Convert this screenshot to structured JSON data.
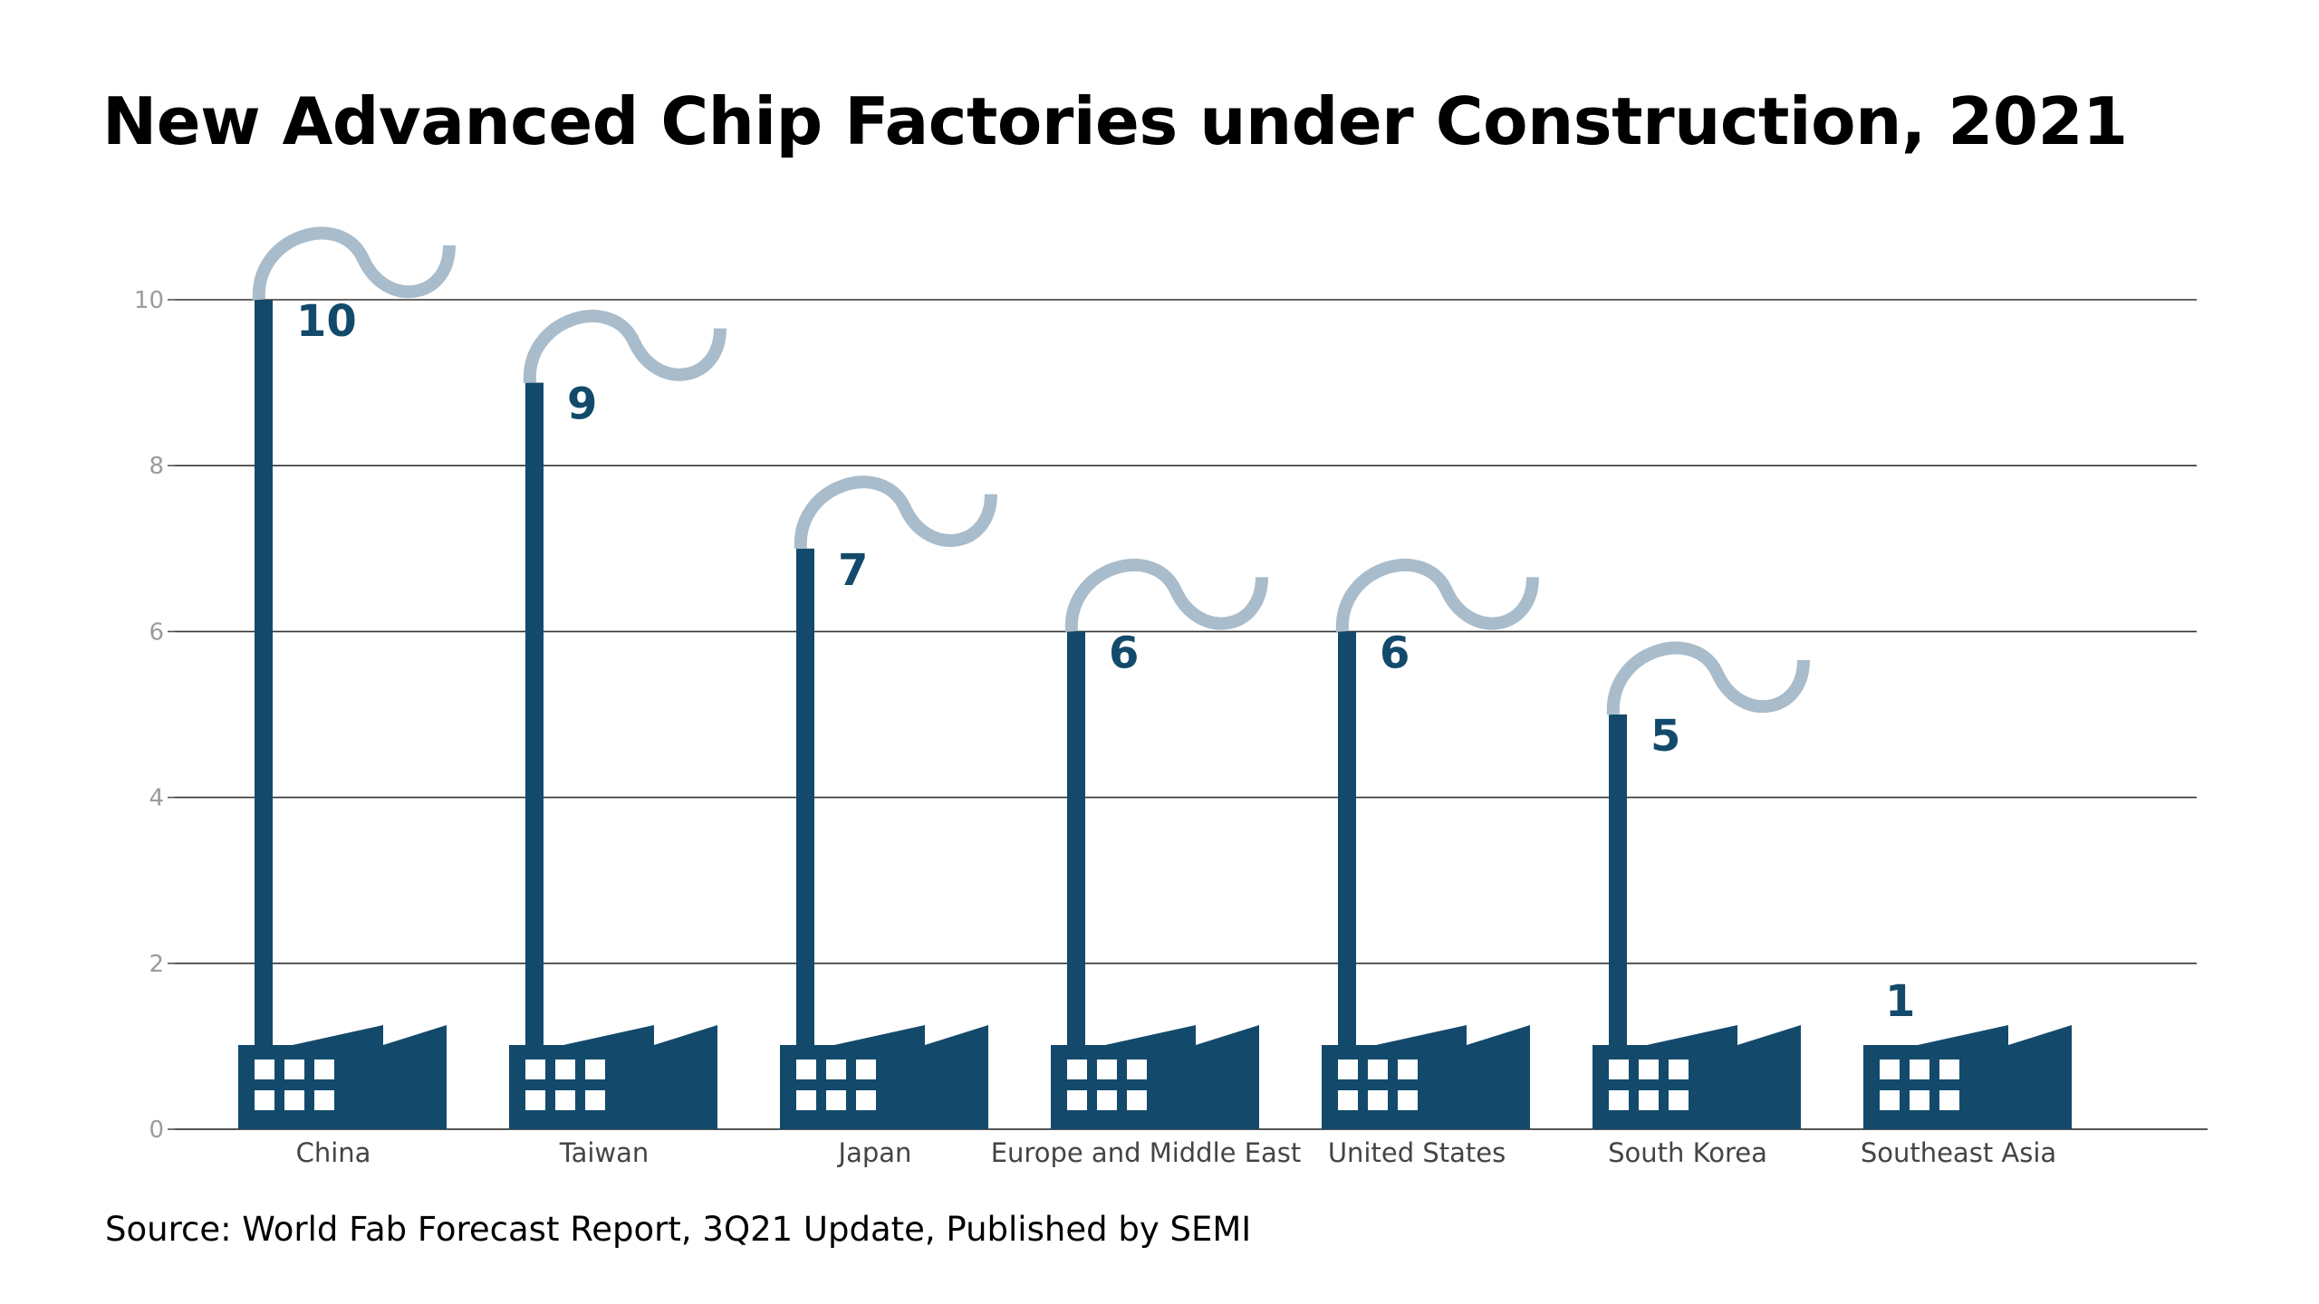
{
  "chart_data": {
    "type": "bar",
    "title": "New Advanced Chip Factories under Construction, 2021",
    "source": "Source: World Fab Forecast Report, 3Q21 Update, Published by SEMI",
    "xlabel": "",
    "ylabel": "",
    "categories": [
      "China",
      "Taiwan",
      "Japan",
      "Europe and Middle East",
      "United States",
      "South Korea",
      "Southeast Asia"
    ],
    "values": [
      10,
      9,
      7,
      6,
      6,
      5,
      1
    ],
    "ylim": [
      0,
      10
    ],
    "yticks": [
      "0",
      "2",
      "4",
      "6",
      "8",
      "10"
    ],
    "grid": true,
    "legend": "none",
    "colors": {
      "bar": "#134a6b",
      "smoke": "#a9bccb",
      "grid": "#333333",
      "tick_text": "#9b9b9b",
      "window": "#ffffff"
    }
  }
}
